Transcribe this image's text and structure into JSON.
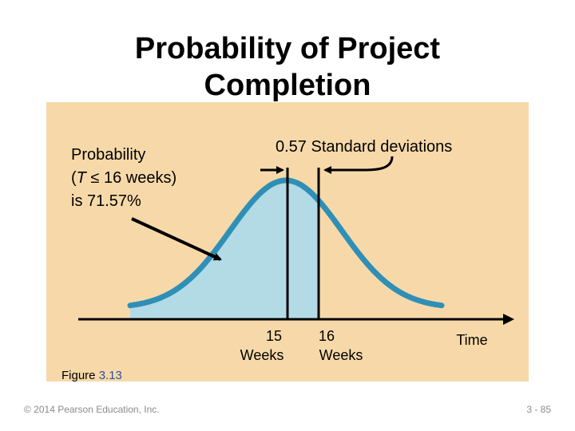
{
  "title": {
    "line1": "Probability of Project",
    "line2": "Completion"
  },
  "colors": {
    "panel_background": "#f7d9a9",
    "curve_fill": "#b3dbe6",
    "curve_stroke": "#2f8fb6",
    "ink": "#000000",
    "figure_number": "#2f4fa0"
  },
  "annotations": {
    "probability_line1": "Probability",
    "probability_line2_prefix": "(",
    "probability_line2_var": "T",
    "probability_line2_rest": " ≤ 16 weeks)",
    "probability_line3": "is 71.57%",
    "std_dev": "0.57 Standard deviations"
  },
  "axis": {
    "mark_15_line1": "15",
    "mark_15_line2": "Weeks",
    "mark_16_line1": "16",
    "mark_16_line2": "Weeks",
    "time_label": "Time"
  },
  "figure": {
    "label_prefix": "Figure ",
    "label_number": "3.13"
  },
  "footer": {
    "copyright": "© 2014 Pearson Education, Inc.",
    "page": "3 - 85"
  }
}
